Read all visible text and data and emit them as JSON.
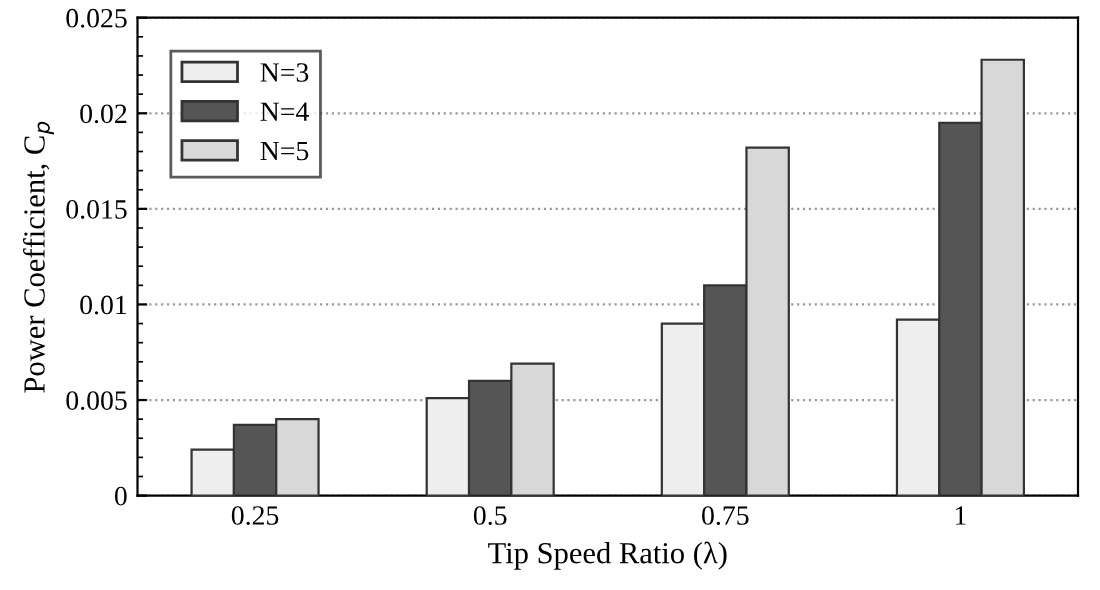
{
  "chart_data": {
    "type": "bar",
    "xlabel": "Tip Speed Ratio (λ)",
    "ylabel": "Power Coefficient, C$_{p}$",
    "categories": [
      "0.25",
      "0.5",
      "0.75",
      "1"
    ],
    "series": [
      {
        "name": "N=3",
        "color": "#eeeeee",
        "values": [
          0.0024,
          0.0051,
          0.009,
          0.0092
        ]
      },
      {
        "name": "N=4",
        "color": "#555555",
        "values": [
          0.0037,
          0.006,
          0.011,
          0.0195
        ]
      },
      {
        "name": "N=5",
        "color": "#d8d8d8",
        "values": [
          0.004,
          0.0069,
          0.0182,
          0.0228
        ]
      }
    ],
    "ylim": [
      0,
      0.025
    ],
    "yticks": [
      0,
      0.005,
      0.01,
      0.015,
      0.02,
      0.025
    ],
    "grid": "y",
    "legend": "top left"
  }
}
